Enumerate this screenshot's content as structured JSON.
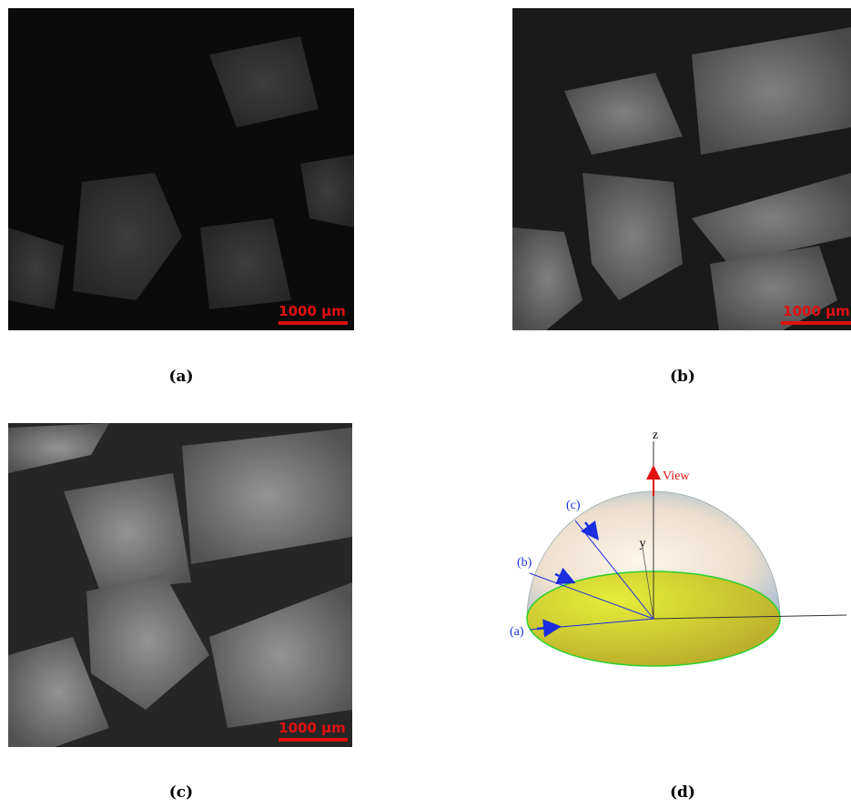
{
  "panels": [
    {
      "caption": "(a)",
      "scale_bar": "1000 µm"
    },
    {
      "caption": "(b)",
      "scale_bar": "1000 µm"
    },
    {
      "caption": "(c)",
      "scale_bar": "1000 µm"
    },
    {
      "caption": "(d)",
      "axis_z": "z",
      "axis_y": "y",
      "view": "View",
      "direction_c": "(c)",
      "direction_b": "(b)",
      "direction_a": "(a)"
    }
  ]
}
